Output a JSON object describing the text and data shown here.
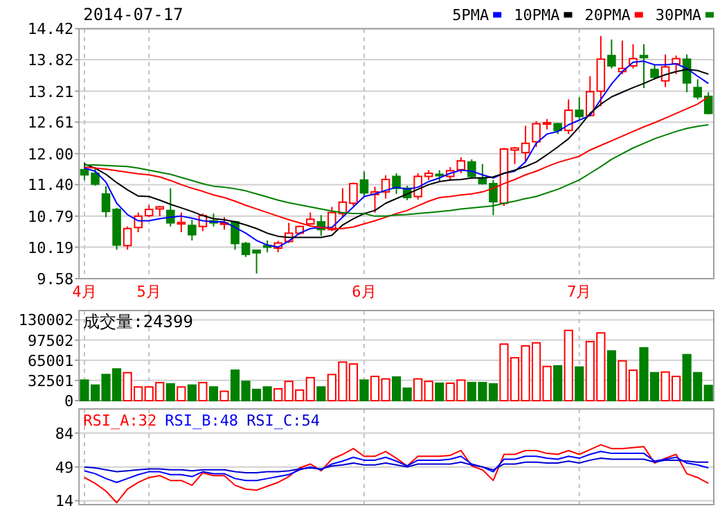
{
  "chart_data": [
    {
      "type": "candlestick",
      "title": "2014-07-17",
      "categories": [
        "4月",
        null,
        null,
        null,
        null,
        null,
        "5月",
        null,
        null,
        null,
        null,
        null,
        null,
        null,
        null,
        null,
        null,
        null,
        null,
        null,
        null,
        null,
        null,
        null,
        null,
        null,
        "6月",
        null,
        null,
        null,
        null,
        null,
        null,
        null,
        null,
        null,
        null,
        null,
        null,
        null,
        null,
        null,
        null,
        null,
        null,
        null,
        "7月",
        null,
        null,
        null,
        null,
        null,
        null,
        null,
        null,
        null,
        null,
        null,
        null
      ],
      "ohlc": [
        [
          11.69,
          11.83,
          11.49,
          11.59
        ],
        [
          11.62,
          11.74,
          11.38,
          11.41
        ],
        [
          11.22,
          11.37,
          10.77,
          10.88
        ],
        [
          10.92,
          10.95,
          10.14,
          10.23
        ],
        [
          10.22,
          10.59,
          10.14,
          10.55
        ],
        [
          10.57,
          10.86,
          10.48,
          10.79
        ],
        [
          10.8,
          11.0,
          10.77,
          10.92
        ],
        [
          10.93,
          10.99,
          10.79,
          10.97
        ],
        [
          10.9,
          11.33,
          10.59,
          10.66
        ],
        [
          10.64,
          10.86,
          10.48,
          10.67
        ],
        [
          10.61,
          10.72,
          10.32,
          10.43
        ],
        [
          10.59,
          10.84,
          10.5,
          10.8
        ],
        [
          10.7,
          10.84,
          10.59,
          10.66
        ],
        [
          10.64,
          10.77,
          10.53,
          10.66
        ],
        [
          10.68,
          10.7,
          10.14,
          10.26
        ],
        [
          10.26,
          10.29,
          10.0,
          10.05
        ],
        [
          10.13,
          10.14,
          9.68,
          10.08
        ],
        [
          10.22,
          10.32,
          10.09,
          10.19
        ],
        [
          10.17,
          10.31,
          10.09,
          10.27
        ],
        [
          10.3,
          10.66,
          10.27,
          10.46
        ],
        [
          10.46,
          10.61,
          10.43,
          10.59
        ],
        [
          10.64,
          10.86,
          10.62,
          10.73
        ],
        [
          10.68,
          10.81,
          10.41,
          10.53
        ],
        [
          10.53,
          10.97,
          10.5,
          10.86
        ],
        [
          10.84,
          11.33,
          10.77,
          11.06
        ],
        [
          11.04,
          11.44,
          10.99,
          11.42
        ],
        [
          11.49,
          11.65,
          11.17,
          11.24
        ],
        [
          11.21,
          11.36,
          10.86,
          11.26
        ],
        [
          11.26,
          11.58,
          11.13,
          11.5
        ],
        [
          11.56,
          11.62,
          11.22,
          11.33
        ],
        [
          11.33,
          11.38,
          11.1,
          11.15
        ],
        [
          11.17,
          11.62,
          11.11,
          11.56
        ],
        [
          11.56,
          11.68,
          11.49,
          11.62
        ],
        [
          11.6,
          11.68,
          11.47,
          11.58
        ],
        [
          11.56,
          11.74,
          11.5,
          11.67
        ],
        [
          11.69,
          11.93,
          11.62,
          11.86
        ],
        [
          11.84,
          11.89,
          11.53,
          11.56
        ],
        [
          11.53,
          11.8,
          11.4,
          11.42
        ],
        [
          11.42,
          11.49,
          10.81,
          11.07
        ],
        [
          11.04,
          12.11,
          10.99,
          12.09
        ],
        [
          12.07,
          12.13,
          11.8,
          12.11
        ],
        [
          12.02,
          12.54,
          11.83,
          12.2
        ],
        [
          12.23,
          12.63,
          12.13,
          12.58
        ],
        [
          12.58,
          12.67,
          12.47,
          12.6
        ],
        [
          12.58,
          12.6,
          12.38,
          12.45
        ],
        [
          12.45,
          13.05,
          12.38,
          12.84
        ],
        [
          12.84,
          13.09,
          12.67,
          12.72
        ],
        [
          12.74,
          13.5,
          12.72,
          13.2
        ],
        [
          13.21,
          14.28,
          12.92,
          13.83
        ],
        [
          13.9,
          14.21,
          13.65,
          13.7
        ],
        [
          13.59,
          14.19,
          13.54,
          13.65
        ],
        [
          13.7,
          14.12,
          13.65,
          13.84
        ],
        [
          13.9,
          14.12,
          13.27,
          13.86
        ],
        [
          13.63,
          13.72,
          13.44,
          13.48
        ],
        [
          13.41,
          13.92,
          13.29,
          13.68
        ],
        [
          13.74,
          13.9,
          13.54,
          13.84
        ],
        [
          13.83,
          13.92,
          13.19,
          13.37
        ],
        [
          13.28,
          13.44,
          13.05,
          13.1
        ],
        [
          13.11,
          13.19,
          12.76,
          12.78
        ]
      ],
      "colors": [
        "#008000",
        "#008000",
        "#008000",
        "#008000",
        "#ff0000",
        "#ff0000",
        "#ff0000",
        "#ff0000",
        "#008000",
        "#ff0000",
        "#008000",
        "#ff0000",
        "#008000",
        "#ff0000",
        "#008000",
        "#008000",
        "#008000",
        "#008000",
        "#ff0000",
        "#ff0000",
        "#ff0000",
        "#ff0000",
        "#008000",
        "#ff0000",
        "#ff0000",
        "#ff0000",
        "#008000",
        "#ff0000",
        "#ff0000",
        "#008000",
        "#008000",
        "#ff0000",
        "#ff0000",
        "#008000",
        "#ff0000",
        "#ff0000",
        "#008000",
        "#008000",
        "#008000",
        "#ff0000",
        "#ff0000",
        "#ff0000",
        "#ff0000",
        "#ff0000",
        "#008000",
        "#ff0000",
        "#008000",
        "#ff0000",
        "#ff0000",
        "#008000",
        "#ff0000",
        "#ff0000",
        "#008000",
        "#008000",
        "#ff0000",
        "#ff0000",
        "#008000",
        "#008000",
        "#008000"
      ],
      "series": [
        {
          "name": "5PMA",
          "type": "line",
          "color": "#0000ff",
          "values": [
            11.72,
            11.66,
            11.45,
            11.04,
            10.82,
            10.7,
            10.7,
            10.74,
            10.77,
            10.79,
            10.75,
            10.7,
            10.68,
            10.68,
            10.57,
            10.46,
            10.32,
            10.23,
            10.19,
            10.31,
            10.46,
            10.55,
            10.57,
            10.57,
            10.77,
            10.97,
            11.17,
            11.22,
            11.29,
            11.35,
            11.31,
            11.35,
            11.46,
            11.53,
            11.62,
            11.68,
            11.66,
            11.59,
            11.53,
            11.62,
            11.66,
            11.84,
            12.2,
            12.38,
            12.43,
            12.56,
            12.65,
            12.74,
            13.05,
            13.35,
            13.59,
            13.77,
            13.79,
            13.72,
            13.72,
            13.74,
            13.65,
            13.5,
            13.36
          ]
        },
        {
          "name": "10PMA",
          "type": "line",
          "color": "#000000",
          "values": [
            11.8,
            11.72,
            11.6,
            11.44,
            11.3,
            11.18,
            11.17,
            11.1,
            11.02,
            10.95,
            10.88,
            10.8,
            10.74,
            10.72,
            10.68,
            10.62,
            10.55,
            10.46,
            10.4,
            10.38,
            10.38,
            10.38,
            10.38,
            10.42,
            10.62,
            10.74,
            10.84,
            10.9,
            11.04,
            11.13,
            11.22,
            11.31,
            11.4,
            11.46,
            11.49,
            11.5,
            11.53,
            11.53,
            11.55,
            11.62,
            11.68,
            11.75,
            11.84,
            11.98,
            12.13,
            12.29,
            12.52,
            12.78,
            12.96,
            13.1,
            13.19,
            13.28,
            13.36,
            13.45,
            13.53,
            13.59,
            13.63,
            13.61,
            13.54
          ]
        },
        {
          "name": "20PMA",
          "type": "line",
          "color": "#ff0000",
          "values": [
            11.74,
            11.72,
            11.7,
            11.67,
            11.64,
            11.61,
            11.59,
            11.55,
            11.48,
            11.4,
            11.33,
            11.27,
            11.2,
            11.15,
            11.08,
            11.0,
            10.93,
            10.86,
            10.79,
            10.72,
            10.66,
            10.6,
            10.57,
            10.55,
            10.55,
            10.58,
            10.64,
            10.7,
            10.77,
            10.84,
            10.9,
            10.99,
            11.08,
            11.15,
            11.17,
            11.2,
            11.22,
            11.26,
            11.33,
            11.42,
            11.5,
            11.59,
            11.66,
            11.75,
            11.83,
            11.89,
            11.95,
            12.07,
            12.16,
            12.25,
            12.34,
            12.43,
            12.52,
            12.6,
            12.69,
            12.78,
            12.87,
            12.96,
            13.1
          ]
        },
        {
          "name": "30PMA",
          "type": "line",
          "color": "#008000",
          "values": [
            11.78,
            11.78,
            11.77,
            11.76,
            11.75,
            11.72,
            11.68,
            11.64,
            11.6,
            11.54,
            11.48,
            11.42,
            11.37,
            11.35,
            11.32,
            11.28,
            11.22,
            11.16,
            11.1,
            11.05,
            11.01,
            10.97,
            10.93,
            10.89,
            10.86,
            10.84,
            10.84,
            10.79,
            10.79,
            10.81,
            10.82,
            10.84,
            10.86,
            10.88,
            10.9,
            10.93,
            10.95,
            10.97,
            10.99,
            11.04,
            11.08,
            11.13,
            11.17,
            11.24,
            11.31,
            11.4,
            11.49,
            11.62,
            11.75,
            11.89,
            12.0,
            12.11,
            12.2,
            12.29,
            12.36,
            12.43,
            12.49,
            12.53,
            12.56
          ]
        }
      ],
      "ylim": [
        9.58,
        14.42
      ],
      "yticks": [
        9.58,
        10.19,
        10.79,
        {
          "value": 11.4,
          "label": "11.40"
        },
        {
          "value": 12,
          "label": "12.00"
        },
        12.61,
        13.21,
        13.82,
        14.42
      ],
      "grid": "y",
      "legend": "top right",
      "ref_lines": [
        {
          "axis": "x",
          "value": "4月",
          "line_style": "dashed",
          "color": "#c0c0c0"
        },
        {
          "axis": "x",
          "value": "5月",
          "line_style": "dashed",
          "color": "#c0c0c0"
        },
        {
          "axis": "x",
          "value": "6月",
          "line_style": "dashed",
          "color": "#c0c0c0"
        },
        {
          "axis": "x",
          "value": "7月",
          "line_style": "dashed",
          "color": "#c0c0c0"
        }
      ]
    },
    {
      "type": "bar",
      "title": "成交量:24399",
      "categories": [
        "4月",
        null,
        null,
        null,
        null,
        null,
        "5月",
        null,
        null,
        null,
        null,
        null,
        null,
        null,
        null,
        null,
        null,
        null,
        null,
        null,
        null,
        null,
        null,
        null,
        null,
        null,
        "6月",
        null,
        null,
        null,
        null,
        null,
        null,
        null,
        null,
        null,
        null,
        null,
        null,
        null,
        null,
        null,
        null,
        null,
        null,
        null,
        "7月",
        null,
        null,
        null,
        null,
        null,
        null,
        null,
        null,
        null,
        null,
        null,
        null
      ],
      "values": [
        33000,
        25000,
        42000,
        51000,
        45000,
        22000,
        22000,
        29000,
        27000,
        22000,
        25000,
        29000,
        22000,
        15000,
        49000,
        31000,
        18000,
        22000,
        19000,
        31000,
        17000,
        37000,
        22000,
        42000,
        62000,
        59000,
        33000,
        39000,
        35000,
        38000,
        20000,
        35000,
        31000,
        28000,
        28000,
        33000,
        29000,
        29000,
        27000,
        91000,
        69000,
        88000,
        93000,
        55000,
        56000,
        113000,
        54000,
        95000,
        109000,
        80000,
        64000,
        49000,
        85000,
        45000,
        46000,
        39000,
        74000,
        45000,
        24399
      ],
      "colors": [
        "#008000",
        "#008000",
        "#008000",
        "#008000",
        "#ff0000",
        "#ff0000",
        "#ff0000",
        "#ff0000",
        "#008000",
        "#ff0000",
        "#008000",
        "#ff0000",
        "#008000",
        "#ff0000",
        "#008000",
        "#008000",
        "#008000",
        "#008000",
        "#ff0000",
        "#ff0000",
        "#ff0000",
        "#ff0000",
        "#008000",
        "#ff0000",
        "#ff0000",
        "#ff0000",
        "#008000",
        "#ff0000",
        "#ff0000",
        "#008000",
        "#008000",
        "#ff0000",
        "#ff0000",
        "#008000",
        "#ff0000",
        "#ff0000",
        "#008000",
        "#008000",
        "#008000",
        "#ff0000",
        "#ff0000",
        "#ff0000",
        "#ff0000",
        "#ff0000",
        "#008000",
        "#ff0000",
        "#008000",
        "#ff0000",
        "#ff0000",
        "#008000",
        "#ff0000",
        "#ff0000",
        "#008000",
        "#008000",
        "#ff0000",
        "#ff0000",
        "#008000",
        "#008000",
        "#008000"
      ],
      "ylim": [
        0,
        145000
      ],
      "yticks": [
        0,
        32501,
        65001,
        97502,
        130002
      ],
      "grid": "y",
      "tick_labels": "y",
      "ref_lines": [
        {
          "axis": "x",
          "value": "4月",
          "line_style": "dashed",
          "color": "#c0c0c0"
        },
        {
          "axis": "x",
          "value": "5月",
          "line_style": "dashed",
          "color": "#c0c0c0"
        },
        {
          "axis": "x",
          "value": "6月",
          "line_style": "dashed",
          "color": "#c0c0c0"
        },
        {
          "axis": "x",
          "value": "7月",
          "line_style": "dashed",
          "color": "#c0c0c0"
        }
      ]
    },
    {
      "type": "line",
      "categories": [
        "4月",
        null,
        null,
        null,
        null,
        null,
        "5月",
        null,
        null,
        null,
        null,
        null,
        null,
        null,
        null,
        null,
        null,
        null,
        null,
        null,
        null,
        null,
        null,
        null,
        null,
        null,
        "6月",
        null,
        null,
        null,
        null,
        null,
        null,
        null,
        null,
        null,
        null,
        null,
        null,
        null,
        null,
        null,
        null,
        null,
        null,
        null,
        "7月",
        null,
        null,
        null,
        null,
        null,
        null,
        null,
        null,
        null,
        null,
        null,
        null
      ],
      "series": [
        {
          "name": "RSI_A:32",
          "color": "#ff0000",
          "values": [
            38,
            32,
            24,
            12,
            26,
            33,
            38,
            40,
            35,
            35,
            30,
            43,
            40,
            40,
            30,
            26,
            25,
            29,
            33,
            39,
            48,
            52,
            45,
            57,
            62,
            68,
            60,
            60,
            65,
            58,
            50,
            60,
            60,
            60,
            61,
            66,
            50,
            46,
            35,
            62,
            62,
            66,
            66,
            63,
            62,
            66,
            62,
            67,
            72,
            68,
            68,
            69,
            70,
            53,
            58,
            62,
            42,
            38,
            32
          ]
        },
        {
          "name": "RSI_B:48",
          "color": "#0000ff",
          "values": [
            45,
            42,
            37,
            33,
            37,
            41,
            44,
            44,
            41,
            41,
            39,
            44,
            42,
            42,
            37,
            35,
            35,
            37,
            39,
            41,
            46,
            49,
            46,
            52,
            55,
            59,
            56,
            56,
            59,
            55,
            50,
            56,
            56,
            56,
            57,
            60,
            52,
            49,
            44,
            57,
            57,
            60,
            60,
            58,
            57,
            60,
            58,
            62,
            65,
            63,
            63,
            63,
            63,
            55,
            57,
            59,
            53,
            51,
            48
          ]
        },
        {
          "name": "RSI_C:54",
          "color": "#0000d0",
          "values": [
            49,
            48,
            46,
            44,
            45,
            46,
            47,
            47,
            46,
            46,
            45,
            46,
            46,
            46,
            44,
            43,
            43,
            44,
            44,
            45,
            47,
            48,
            47,
            50,
            51,
            53,
            51,
            51,
            53,
            51,
            49,
            52,
            52,
            52,
            52,
            54,
            51,
            49,
            46,
            52,
            52,
            54,
            54,
            53,
            53,
            55,
            53,
            56,
            58,
            57,
            57,
            57,
            57,
            54,
            56,
            56,
            55,
            54,
            54
          ]
        }
      ],
      "ylim": [
        10,
        109
      ],
      "yticks": [
        14,
        49,
        84
      ],
      "grid": "y",
      "legend": "top left",
      "tick_labels": "y",
      "ref_lines": [
        {
          "axis": "x",
          "value": "4月",
          "line_style": "dashed",
          "color": "#c0c0c0"
        },
        {
          "axis": "x",
          "value": "5月",
          "line_style": "dashed",
          "color": "#c0c0c0"
        },
        {
          "axis": "x",
          "value": "6月",
          "line_style": "dashed",
          "color": "#c0c0c0"
        },
        {
          "axis": "x",
          "value": "7月",
          "line_style": "dashed",
          "color": "#c0c0c0"
        }
      ]
    }
  ]
}
